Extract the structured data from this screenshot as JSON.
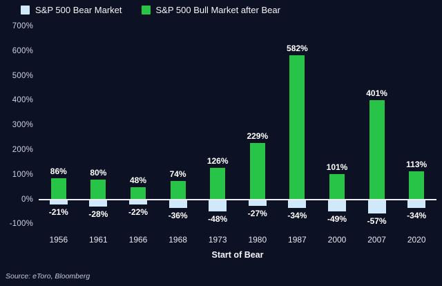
{
  "legend": [
    {
      "label": "S&P 500 Bear Market",
      "color": "#cfe9fa"
    },
    {
      "label": "S&P 500 Bull Market after Bear",
      "color": "#27c447"
    }
  ],
  "source": "Source: eToro, Bloomberg",
  "chart_data": {
    "type": "bar",
    "categories": [
      "1956",
      "1961",
      "1966",
      "1968",
      "1973",
      "1980",
      "1987",
      "2000",
      "2007",
      "2020"
    ],
    "series": [
      {
        "name": "S&P 500 Bear Market",
        "color": "#cfe9fa",
        "values": [
          -21,
          -28,
          -22,
          -36,
          -48,
          -27,
          -34,
          -49,
          -57,
          -34
        ]
      },
      {
        "name": "S&P 500 Bull Market after Bear",
        "color": "#27c447",
        "values": [
          86,
          80,
          48,
          74,
          126,
          229,
          582,
          101,
          401,
          113
        ]
      }
    ],
    "title": "",
    "xlabel": "Start of Bear",
    "ylabel": "",
    "ylim": [
      -100,
      700
    ],
    "ytick_step": 100,
    "yticks": [
      "700%",
      "600%",
      "500%",
      "400%",
      "300%",
      "200%",
      "100%",
      "0%",
      "-100%"
    ],
    "grid": false,
    "legend_position": "top-left",
    "value_label_format": "percent"
  }
}
